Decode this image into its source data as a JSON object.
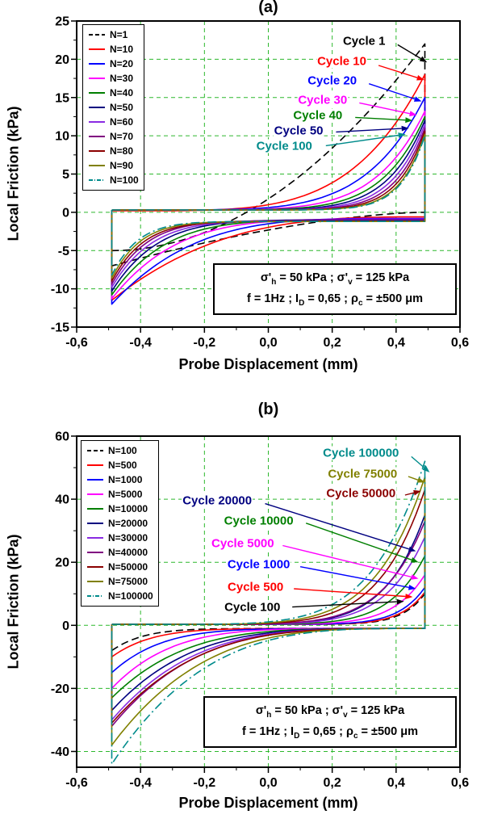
{
  "figure": {
    "background": "#ffffff",
    "grid_color": "#2db82d"
  },
  "chart_data": [
    {
      "id": "a",
      "type": "line",
      "title": "(a)",
      "xlabel": "Probe Displacement (mm)",
      "ylabel": "Local Friction (kPa)",
      "xlim": [
        -0.6,
        0.6
      ],
      "ylim": [
        -15,
        25
      ],
      "xticks": [
        -0.6,
        -0.4,
        -0.2,
        0.0,
        0.2,
        0.4,
        0.6
      ],
      "xtick_labels": [
        "-0,6",
        "-0,4",
        "-0,2",
        "0,0",
        "0,2",
        "0,4",
        "0,6"
      ],
      "yticks": [
        -15,
        -10,
        -5,
        0,
        5,
        10,
        15,
        20,
        25
      ],
      "ytick_labels": [
        "-15",
        "-10",
        "-5",
        "0",
        "5",
        "10",
        "15",
        "20",
        "25"
      ],
      "grid": true,
      "legend_position": "top-left",
      "series": [
        {
          "name": "N=1",
          "color": "#000000",
          "dash": "dash",
          "loop": {
            "xm": 0.49,
            "pt": 22.0,
            "ut": -5.0,
            "st": 2.0,
            "pb": -7.0,
            "lbr": 0.0,
            "sb": 1.6
          }
        },
        {
          "name": "N=10",
          "color": "#ff0000",
          "dash": "solid",
          "loop": {
            "xm": 0.49,
            "pt": 18.0,
            "ut": 0.2,
            "st": 4.5,
            "pb": -11.5,
            "lbr": -0.6,
            "sb": 3.0
          }
        },
        {
          "name": "N=20",
          "color": "#0000ff",
          "dash": "solid",
          "loop": {
            "xm": 0.49,
            "pt": 15.0,
            "ut": 0.3,
            "st": 5.5,
            "pb": -12.0,
            "lbr": -0.8,
            "sb": 4.0
          }
        },
        {
          "name": "N=30",
          "color": "#ff00ff",
          "dash": "solid",
          "loop": {
            "xm": 0.49,
            "pt": 13.2,
            "ut": 0.3,
            "st": 6.5,
            "pb": -11.3,
            "lbr": -0.9,
            "sb": 5.0
          }
        },
        {
          "name": "N=40",
          "color": "#007f00",
          "dash": "solid",
          "loop": {
            "xm": 0.49,
            "pt": 12.5,
            "ut": 0.3,
            "st": 7.5,
            "pb": -10.8,
            "lbr": -1.0,
            "sb": 6.0
          }
        },
        {
          "name": "N=50",
          "color": "#000080",
          "dash": "solid",
          "loop": {
            "xm": 0.49,
            "pt": 12.0,
            "ut": 0.3,
            "st": 8.5,
            "pb": -10.3,
            "lbr": -1.0,
            "sb": 7.0
          }
        },
        {
          "name": "N=60",
          "color": "#8a2be2",
          "dash": "solid",
          "loop": {
            "xm": 0.49,
            "pt": 11.5,
            "ut": 0.3,
            "st": 9.5,
            "pb": -9.8,
            "lbr": -1.1,
            "sb": 8.0
          }
        },
        {
          "name": "N=70",
          "color": "#800080",
          "dash": "solid",
          "loop": {
            "xm": 0.49,
            "pt": 11.0,
            "ut": 0.3,
            "st": 10.5,
            "pb": -9.4,
            "lbr": -1.1,
            "sb": 9.0
          }
        },
        {
          "name": "N=80",
          "color": "#8b0000",
          "dash": "solid",
          "loop": {
            "xm": 0.49,
            "pt": 10.6,
            "ut": 0.3,
            "st": 11.5,
            "pb": -9.0,
            "lbr": -1.2,
            "sb": 10.0
          }
        },
        {
          "name": "N=90",
          "color": "#808000",
          "dash": "solid",
          "loop": {
            "xm": 0.49,
            "pt": 10.2,
            "ut": 0.3,
            "st": 12.5,
            "pb": -8.6,
            "lbr": -1.2,
            "sb": 11.0
          }
        },
        {
          "name": "N=100",
          "color": "#008b8b",
          "dash": "dashdot",
          "loop": {
            "xm": 0.49,
            "pt": 10.0,
            "ut": 0.3,
            "st": 13.0,
            "pb": -8.2,
            "lbr": -1.2,
            "sb": 12.0
          }
        }
      ],
      "annotations": [
        {
          "text": "Cycle 1",
          "color": "#000000",
          "lx": 0.3,
          "ly": 22.4,
          "ax": 0.405,
          "ay": 21.9,
          "tx": 0.497,
          "ty": 19.6
        },
        {
          "text": "Cycle 10",
          "color": "#ff0000",
          "lx": 0.23,
          "ly": 19.7,
          "ax": 0.345,
          "ay": 19.2,
          "tx": 0.488,
          "ty": 17.3
        },
        {
          "text": "Cycle 20",
          "color": "#0000ff",
          "lx": 0.2,
          "ly": 17.2,
          "ax": 0.315,
          "ay": 16.8,
          "tx": 0.48,
          "ty": 14.5
        },
        {
          "text": "Cycle 30",
          "color": "#ff00ff",
          "lx": 0.17,
          "ly": 14.7,
          "ax": 0.285,
          "ay": 14.3,
          "tx": 0.465,
          "ty": 12.7
        },
        {
          "text": "Cycle 40",
          "color": "#007f00",
          "lx": 0.155,
          "ly": 12.7,
          "ax": 0.272,
          "ay": 12.4,
          "tx": 0.452,
          "ty": 12.0
        },
        {
          "text": "Cycle 50",
          "color": "#000080",
          "lx": 0.095,
          "ly": 10.6,
          "ax": 0.212,
          "ay": 10.5,
          "tx": 0.44,
          "ty": 11.0
        },
        {
          "text": "Cycle 100",
          "color": "#008b8b",
          "lx": 0.05,
          "ly": 8.6,
          "ax": 0.18,
          "ay": 8.7,
          "tx": 0.43,
          "ty": 10.2
        }
      ],
      "infobox_lines": [
        "σ'_{h} = 50 kPa ; σ'_{v} = 125 kPa",
        "f = 1Hz ; I_{D} = 0,65 ; ρ_{c} = ±500 μm"
      ]
    },
    {
      "id": "b",
      "type": "line",
      "title": "(b)",
      "xlabel": "Probe Displacement (mm)",
      "ylabel": "Local Friction (kPa)",
      "xlim": [
        -0.6,
        0.6
      ],
      "ylim": [
        -45,
        60
      ],
      "xticks": [
        -0.6,
        -0.4,
        -0.2,
        0.0,
        0.2,
        0.4,
        0.6
      ],
      "xtick_labels": [
        "-0,6",
        "-0,4",
        "-0,2",
        "0,0",
        "0,2",
        "0,4",
        "0,6"
      ],
      "yticks": [
        -40,
        -20,
        0,
        20,
        40,
        60
      ],
      "ytick_labels": [
        "-40",
        "-20",
        "0",
        "20",
        "40",
        "60"
      ],
      "grid": true,
      "legend_position": "top-left",
      "series": [
        {
          "name": "N=100",
          "color": "#000000",
          "dash": "dash",
          "loop": {
            "xm": 0.49,
            "pt": 10.0,
            "ut": 0.3,
            "st": 14.0,
            "pb": -8.0,
            "lbr": -1.0,
            "sb": 10.0
          }
        },
        {
          "name": "N=500",
          "color": "#ff0000",
          "dash": "solid",
          "loop": {
            "xm": 0.49,
            "pt": 10.5,
            "ut": 0.3,
            "st": 13.0,
            "pb": -10.0,
            "lbr": -1.0,
            "sb": 8.0
          }
        },
        {
          "name": "N=1000",
          "color": "#0000ff",
          "dash": "solid",
          "loop": {
            "xm": 0.49,
            "pt": 12.0,
            "ut": 0.3,
            "st": 12.0,
            "pb": -15.0,
            "lbr": -1.0,
            "sb": 6.5
          }
        },
        {
          "name": "N=5000",
          "color": "#ff00ff",
          "dash": "solid",
          "loop": {
            "xm": 0.49,
            "pt": 16.0,
            "ut": 0.3,
            "st": 10.0,
            "pb": -20.0,
            "lbr": -1.0,
            "sb": 5.5
          }
        },
        {
          "name": "N=10000",
          "color": "#007f00",
          "dash": "solid",
          "loop": {
            "xm": 0.49,
            "pt": 22.0,
            "ut": 0.3,
            "st": 9.0,
            "pb": -23.0,
            "lbr": -1.0,
            "sb": 4.5
          }
        },
        {
          "name": "N=20000",
          "color": "#000080",
          "dash": "solid",
          "loop": {
            "xm": 0.49,
            "pt": 35.0,
            "ut": 0.3,
            "st": 8.0,
            "pb": -27.0,
            "lbr": -1.0,
            "sb": 4.2
          }
        },
        {
          "name": "N=30000",
          "color": "#8a2be2",
          "dash": "solid",
          "loop": {
            "xm": 0.49,
            "pt": 28.0,
            "ut": 0.3,
            "st": 8.0,
            "pb": -30.0,
            "lbr": -1.0,
            "sb": 4.0
          }
        },
        {
          "name": "N=40000",
          "color": "#800080",
          "dash": "solid",
          "loop": {
            "xm": 0.49,
            "pt": 33.0,
            "ut": 0.3,
            "st": 7.5,
            "pb": -32.0,
            "lbr": -1.0,
            "sb": 3.9
          }
        },
        {
          "name": "N=50000",
          "color": "#8b0000",
          "dash": "solid",
          "loop": {
            "xm": 0.49,
            "pt": 43.0,
            "ut": 0.3,
            "st": 7.0,
            "pb": -31.0,
            "lbr": -1.0,
            "sb": 3.8
          }
        },
        {
          "name": "N=75000",
          "color": "#808000",
          "dash": "solid",
          "loop": {
            "xm": 0.49,
            "pt": 47.0,
            "ut": 0.3,
            "st": 6.5,
            "pb": -38.0,
            "lbr": -1.0,
            "sb": 3.6
          }
        },
        {
          "name": "N=100000",
          "color": "#008b8b",
          "dash": "dashdot",
          "loop": {
            "xm": 0.49,
            "pt": 52.0,
            "ut": 0.3,
            "st": 6.0,
            "pb": -44.0,
            "lbr": -1.0,
            "sb": 3.5
          }
        }
      ],
      "annotations": [
        {
          "text": "Cycle 100000",
          "color": "#008b8b",
          "lx": 0.29,
          "ly": 54.5,
          "ax": 0.448,
          "ay": 53.5,
          "tx": 0.505,
          "ty": 48.5
        },
        {
          "text": "Cycle 75000",
          "color": "#808000",
          "lx": 0.295,
          "ly": 48.0,
          "ax": 0.438,
          "ay": 47.2,
          "tx": 0.49,
          "ty": 45.3
        },
        {
          "text": "Cycle 50000",
          "color": "#8b0000",
          "lx": 0.29,
          "ly": 41.8,
          "ax": 0.428,
          "ay": 41.3,
          "tx": 0.478,
          "ty": 42.6
        },
        {
          "text": "Cycle 20000",
          "color": "#000080",
          "lx": -0.16,
          "ly": 39.5,
          "ax": -0.01,
          "ay": 38.6,
          "tx": 0.462,
          "ty": 23.5
        },
        {
          "text": "Cycle 10000",
          "color": "#007f00",
          "lx": -0.03,
          "ly": 33.2,
          "ax": 0.118,
          "ay": 32.4,
          "tx": 0.47,
          "ty": 20.0
        },
        {
          "text": "Cycle 5000",
          "color": "#ff00ff",
          "lx": -0.08,
          "ly": 26.0,
          "ax": 0.045,
          "ay": 25.3,
          "tx": 0.47,
          "ty": 14.8
        },
        {
          "text": "Cycle 1000",
          "color": "#0000ff",
          "lx": -0.03,
          "ly": 19.2,
          "ax": 0.1,
          "ay": 18.6,
          "tx": 0.462,
          "ty": 11.6
        },
        {
          "text": "Cycle 500",
          "color": "#ff0000",
          "lx": -0.04,
          "ly": 12.0,
          "ax": 0.08,
          "ay": 11.6,
          "tx": 0.452,
          "ty": 9.0
        },
        {
          "text": "Cycle 100",
          "color": "#000000",
          "lx": -0.05,
          "ly": 5.6,
          "ax": 0.075,
          "ay": 5.8,
          "tx": 0.425,
          "ty": 7.6
        }
      ],
      "infobox_lines": [
        "σ'_{h} = 50 kPa ; σ'_{v} = 125 kPa",
        "f = 1Hz ; I_{D} = 0,65 ; ρ_{c} = ±500 μm"
      ]
    }
  ]
}
